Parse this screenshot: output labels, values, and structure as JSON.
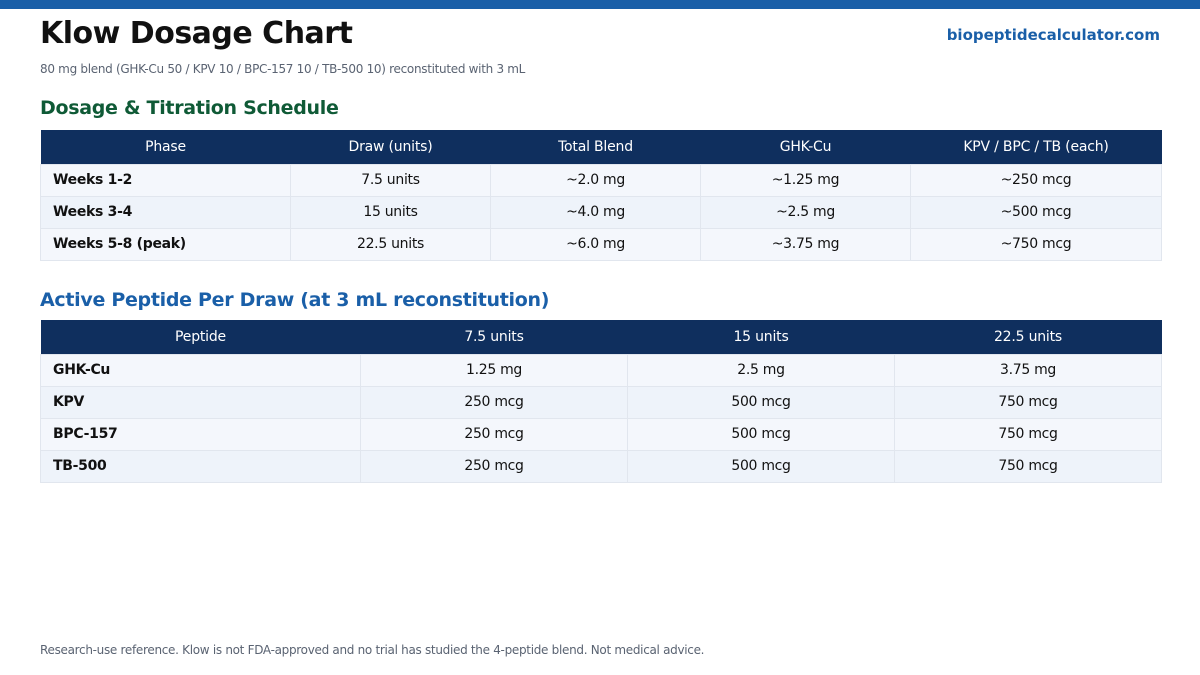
{
  "header": {
    "title": "Klow Dosage Chart",
    "site": "biopeptidecalculator.com",
    "subtitle": "80 mg blend (GHK-Cu 50 / KPV 10 / BPC-157 10 / TB-500 10) reconstituted with 3 mL",
    "accent_color": "#1a5fa8"
  },
  "schedule": {
    "title": "Dosage & Titration Schedule",
    "columns": [
      "Phase",
      "Draw (units)",
      "Total Blend",
      "GHK-Cu",
      "KPV / BPC / TB (each)"
    ],
    "rows": [
      [
        "Weeks 1-2",
        "7.5 units",
        "~2.0 mg",
        "~1.25 mg",
        "~250 mcg"
      ],
      [
        "Weeks 3-4",
        "15 units",
        "~4.0 mg",
        "~2.5 mg",
        "~500 mcg"
      ],
      [
        "Weeks 5-8 (peak)",
        "22.5 units",
        "~6.0 mg",
        "~3.75 mg",
        "~750 mcg"
      ]
    ]
  },
  "per_draw": {
    "title": "Active Peptide Per Draw (at 3 mL reconstitution)",
    "columns": [
      "Peptide",
      "7.5 units",
      "15 units",
      "22.5 units"
    ],
    "rows": [
      [
        "GHK-Cu",
        "1.25 mg",
        "2.5 mg",
        "3.75 mg"
      ],
      [
        "KPV",
        "250 mcg",
        "500 mcg",
        "750 mcg"
      ],
      [
        "BPC-157",
        "250 mcg",
        "500 mcg",
        "750 mcg"
      ],
      [
        "TB-500",
        "250 mcg",
        "500 mcg",
        "750 mcg"
      ]
    ]
  },
  "footer": {
    "disclaimer": "Research-use reference. Klow is not FDA-approved and no trial has studied the 4-peptide blend. Not medical advice."
  }
}
